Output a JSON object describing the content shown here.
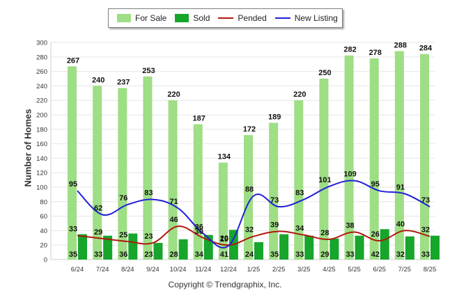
{
  "legend": {
    "for_sale": "For Sale",
    "sold": "Sold",
    "pended": "Pended",
    "new_listing": "New Listing"
  },
  "colors": {
    "for_sale": "#9ede84",
    "sold": "#17a52c",
    "pended": "#b0180c",
    "new_listing": "#1f1fd8",
    "grid": "#e6e6e6"
  },
  "copyright": "Copyright © Trendgraphix, Inc.",
  "chart_data": {
    "type": "bar",
    "title": "",
    "xlabel": "",
    "ylabel": "Number of Homes",
    "ylim": [
      0,
      300
    ],
    "yticks": [
      0,
      20,
      40,
      60,
      80,
      100,
      120,
      140,
      160,
      180,
      200,
      220,
      240,
      260,
      280,
      300
    ],
    "grid": true,
    "legend_position": "top",
    "categories": [
      "6/24",
      "7/24",
      "8/24",
      "9/24",
      "10/24",
      "11/24",
      "12/24",
      "1/25",
      "2/25",
      "3/25",
      "4/25",
      "5/25",
      "6/25",
      "7/25",
      "8/25"
    ],
    "series": [
      {
        "name": "For Sale",
        "kind": "bar",
        "values": [
          267,
          240,
          237,
          253,
          220,
          187,
          134,
          172,
          189,
          220,
          250,
          282,
          278,
          288,
          284
        ]
      },
      {
        "name": "Sold",
        "kind": "bar",
        "values": [
          35,
          33,
          36,
          23,
          28,
          34,
          41,
          24,
          35,
          33,
          29,
          33,
          42,
          32,
          33
        ]
      },
      {
        "name": "Pended",
        "kind": "line",
        "values": [
          33,
          29,
          25,
          23,
          46,
          30,
          20,
          32,
          39,
          34,
          28,
          38,
          26,
          40,
          32
        ]
      },
      {
        "name": "New Listing",
        "kind": "line",
        "values": [
          95,
          62,
          76,
          83,
          71,
          36,
          19,
          88,
          73,
          83,
          101,
          109,
          95,
          91,
          73
        ]
      }
    ]
  }
}
